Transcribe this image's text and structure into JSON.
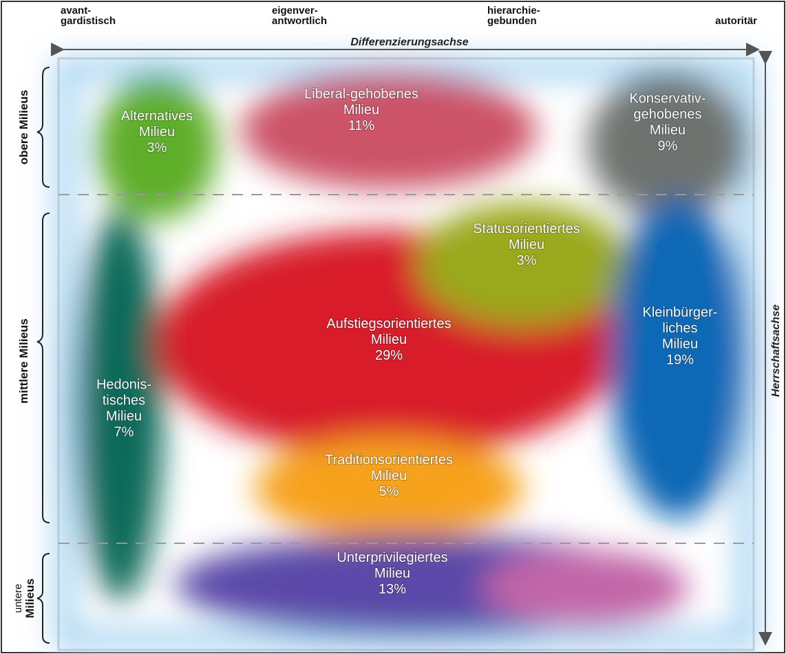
{
  "top_labels": [
    [
      "avant-",
      "gardistisch"
    ],
    [
      "eigenver-",
      "antwortlich"
    ],
    [
      "hierarchie-",
      "gebunden"
    ],
    [
      "autoritär"
    ]
  ],
  "x_axis_label": "Differenzierungsachse",
  "y_axis_label": "Herrschaftsachse",
  "side_labels": [
    [
      "obere Milieus"
    ],
    [
      "mittlere Milieus"
    ],
    [
      "untere",
      "Milieus"
    ]
  ],
  "milieus": [
    {
      "lines": [
        "Alternatives",
        "Milieu"
      ],
      "share": "3%"
    },
    {
      "lines": [
        "Liberal-gehobenes",
        "Milieu"
      ],
      "share": "11%"
    },
    {
      "lines": [
        "Konservativ-",
        "gehobenes",
        "Milieu"
      ],
      "share": "9%"
    },
    {
      "lines": [
        "Statusorientiertes",
        "Milieu"
      ],
      "share": "3%"
    },
    {
      "lines": [
        "Aufstiegsorientiertes",
        "Milieu"
      ],
      "share": "29%"
    },
    {
      "lines": [
        "Kleinbürger-",
        "liches",
        "Milieu"
      ],
      "share": "19%"
    },
    {
      "lines": [
        "Hedonis-",
        "tisches",
        "Milieu"
      ],
      "share": "7%"
    },
    {
      "lines": [
        "Traditionsorientiertes",
        "Milieu"
      ],
      "share": "5%"
    },
    {
      "lines": [
        "Unterprivilegiertes",
        "Milieu"
      ],
      "share": "13%"
    }
  ]
}
